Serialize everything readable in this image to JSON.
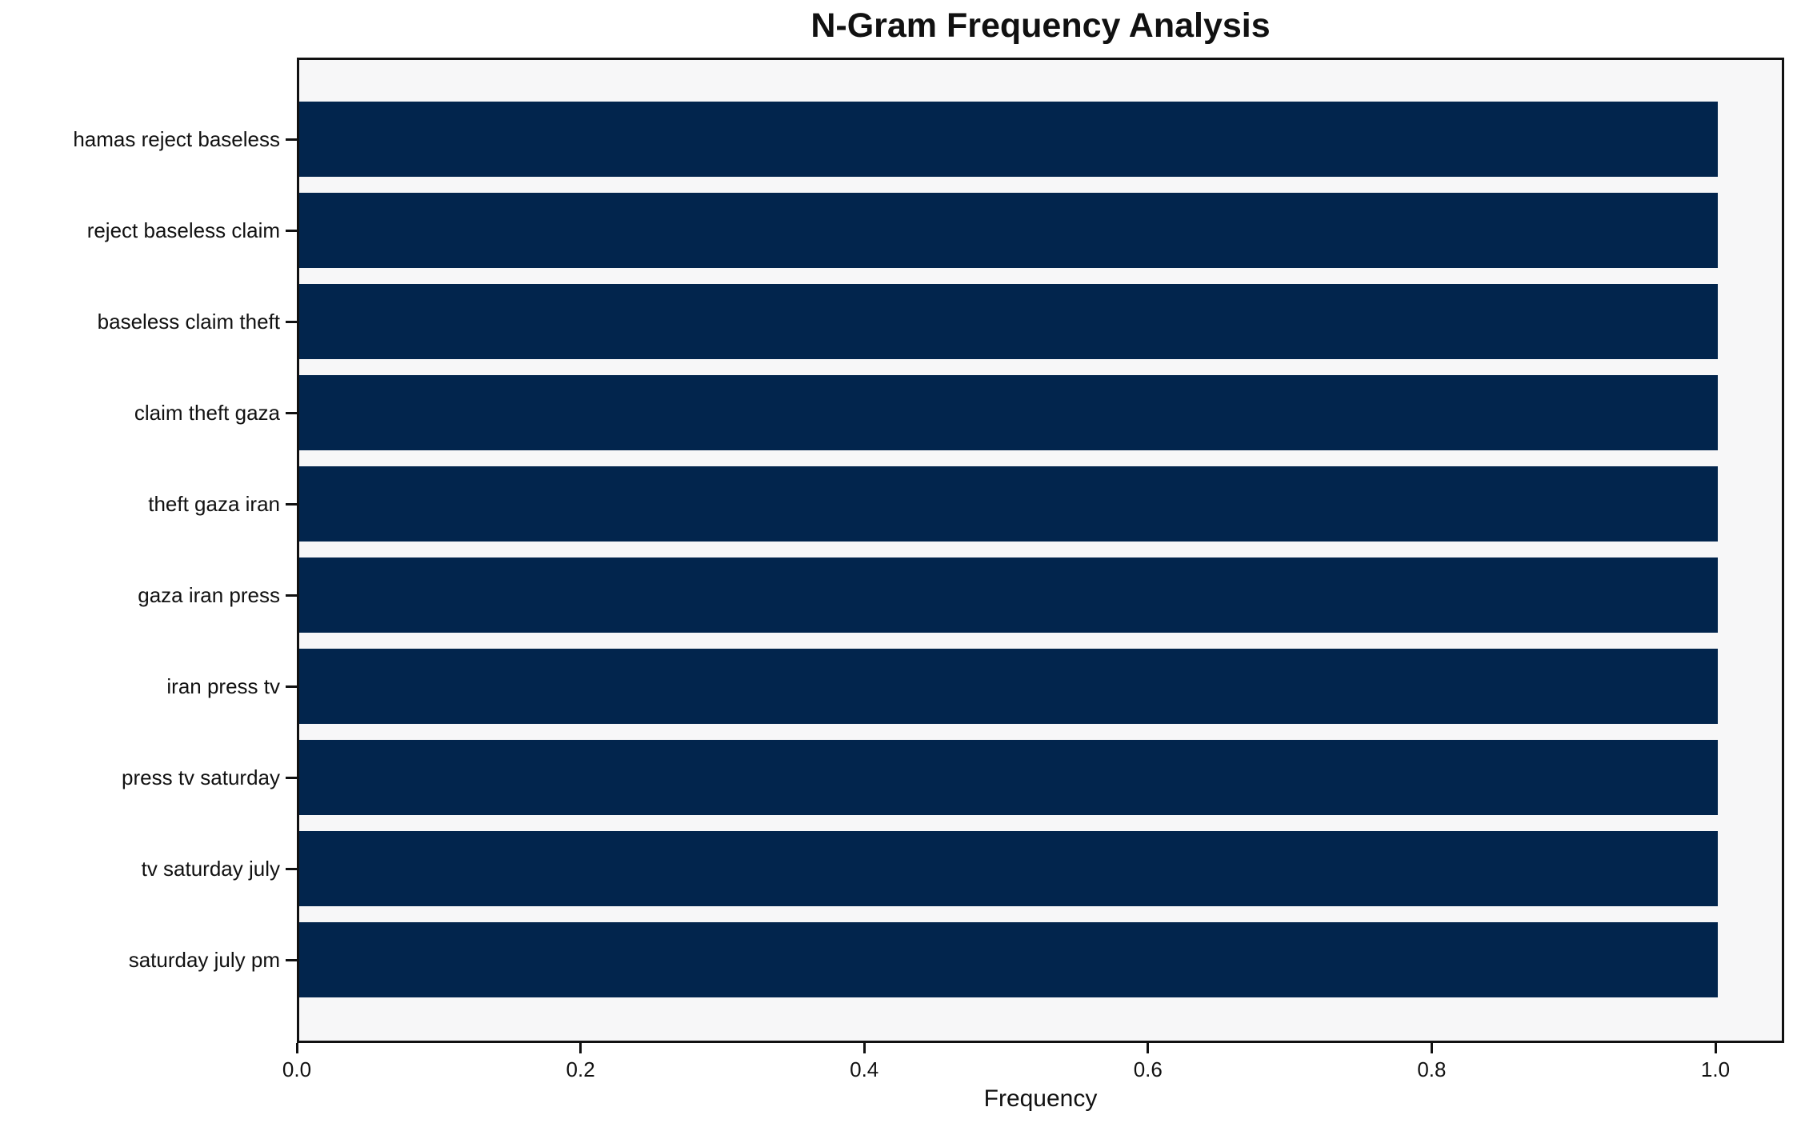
{
  "chart_data": {
    "type": "bar",
    "orientation": "horizontal",
    "title": "N-Gram Frequency Analysis",
    "xlabel": "Frequency",
    "ylabel": "",
    "categories": [
      "hamas reject baseless",
      "reject baseless claim",
      "baseless claim theft",
      "claim theft gaza",
      "theft gaza iran",
      "gaza iran press",
      "iran press tv",
      "press tv saturday",
      "tv saturday july",
      "saturday july pm"
    ],
    "values": [
      1.0,
      1.0,
      1.0,
      1.0,
      1.0,
      1.0,
      1.0,
      1.0,
      1.0,
      1.0
    ],
    "xlim": [
      0.0,
      1.045
    ],
    "x_ticks": [
      0.0,
      0.2,
      0.4,
      0.6,
      0.8,
      1.0
    ],
    "x_tick_labels": [
      "0.0",
      "0.2",
      "0.4",
      "0.6",
      "0.8",
      "1.0"
    ],
    "grid": false,
    "legend": null,
    "colors": {
      "bar": "#02254d",
      "plot_background": "#f7f7f8",
      "figure_background": "#ffffff",
      "text": "#111111",
      "spine": "#111111"
    }
  }
}
